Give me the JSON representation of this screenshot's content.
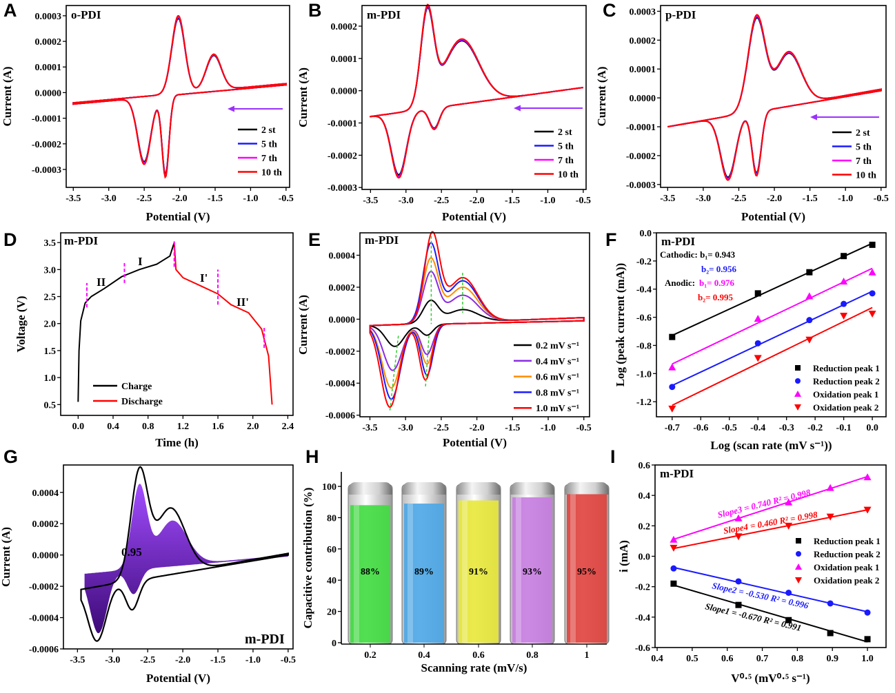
{
  "panel_labels": [
    "A",
    "B",
    "C",
    "D",
    "E",
    "F",
    "G",
    "H",
    "I"
  ],
  "colors": {
    "arrow": "#9b30ff",
    "dashed_marker": "#ff00ff",
    "phase_label": "#1a1aff",
    "title_red": "#ff0000",
    "fit_dashed": "#33cc33"
  },
  "chart_data": [
    {
      "type": "line",
      "title": "o-PDI",
      "xlabel": "Potential (V)",
      "ylabel": "Current (A)",
      "xticks": [
        -3.5,
        -3.0,
        -2.5,
        -2.0,
        -1.5,
        -1.0,
        -0.5
      ],
      "xtick_labels": [
        "-3.5",
        "-3.0",
        "-2.5",
        "-2.0",
        "-1.5",
        "-1.0",
        "-0.5"
      ],
      "yticks": [
        0.0003,
        0.0002,
        0.0001,
        0,
        -0.0001,
        -0.0002,
        -0.0003
      ],
      "ytick_labels": [
        "0.0003",
        "0.0002",
        "0.0001",
        "0.0000",
        "-0.0001",
        "-0.0002",
        "-0.0003"
      ],
      "series": [
        {
          "name": "2 st",
          "color": "#000000"
        },
        {
          "name": "5 th",
          "color": "#1a1aff"
        },
        {
          "name": "7 th",
          "color": "#ff00ff"
        },
        {
          "name": "10 th",
          "color": "#ff0000"
        }
      ],
      "cv": {
        "range": [
          -3.5,
          -0.5
        ],
        "anodic_baseline": [
          -4e-05,
          3.5e-05
        ],
        "cathodic_baseline": [
          -4.5e-05,
          3e-05
        ],
        "anodic_peaks": [
          {
            "potential": -2.02,
            "current": 0.0003,
            "width": 0.13
          },
          {
            "potential": -1.52,
            "current": 0.00015,
            "width": 0.15
          }
        ],
        "cathodic_peaks": [
          {
            "potential": -2.5,
            "current": -0.00028,
            "width": 0.13
          },
          {
            "potential": -2.2,
            "current": -0.00033,
            "width": 0.07
          }
        ]
      }
    },
    {
      "type": "line",
      "title": "m-PDI",
      "xlabel": "Potential (V)",
      "ylabel": "Current (A)",
      "xticks": [
        -3.5,
        -3.0,
        -2.5,
        -2.0,
        -1.5,
        -1.0,
        -0.5
      ],
      "xtick_labels": [
        "-3.5",
        "-3.0",
        "-2.5",
        "-2.0",
        "-1.5",
        "-1.0",
        "-0.5"
      ],
      "yticks": [
        0.0002,
        0.0001,
        0,
        -0.0001,
        -0.0002,
        -0.0003
      ],
      "ytick_labels": [
        "0.0002",
        "0.0001",
        "0.0000",
        "-0.0001",
        "-0.0002",
        "-0.0003"
      ],
      "series": [
        {
          "name": "2 st",
          "color": "#000000"
        },
        {
          "name": "5 th",
          "color": "#1a1aff"
        },
        {
          "name": "7 th",
          "color": "#ff00ff"
        },
        {
          "name": "10 th",
          "color": "#ff0000"
        }
      ],
      "cv": {
        "range": [
          -3.5,
          -0.5
        ],
        "anodic_baseline": [
          -8e-05,
          1e-05
        ],
        "cathodic_baseline": [
          -8e-05,
          1e-05
        ],
        "anodic_peaks": [
          {
            "potential": -2.7,
            "current": 0.000235,
            "width": 0.13
          },
          {
            "potential": -2.22,
            "current": 0.00016,
            "width": 0.35
          }
        ],
        "cathodic_peaks": [
          {
            "potential": -3.1,
            "current": -0.00027,
            "width": 0.15
          },
          {
            "potential": -2.6,
            "current": -0.00012,
            "width": 0.1
          }
        ]
      }
    },
    {
      "type": "line",
      "title": "p-PDI",
      "xlabel": "Potential (V)",
      "ylabel": "Current (A)",
      "xticks": [
        -3.5,
        -3.0,
        -2.5,
        -2.0,
        -1.5,
        -1.0,
        -0.5
      ],
      "xtick_labels": [
        "-3.5",
        "-3.0",
        "-2.5",
        "-2.0",
        "-1.5",
        "-1.0",
        "-0.5"
      ],
      "yticks": [
        0.0003,
        0.0002,
        0.0001,
        0,
        -0.0001,
        -0.0002,
        -0.0003
      ],
      "ytick_labels": [
        "0.0003",
        "0.0002",
        "0.0001",
        "0.0000",
        "-0.0001",
        "-0.0002",
        "-0.0003"
      ],
      "series": [
        {
          "name": "2 st",
          "color": "#000000"
        },
        {
          "name": "5 th",
          "color": "#1a1aff"
        },
        {
          "name": "7 th",
          "color": "#ff00ff"
        },
        {
          "name": "10 th",
          "color": "#ff0000"
        }
      ],
      "cv": {
        "range": [
          -3.5,
          -0.5
        ],
        "anodic_baseline": [
          -0.0001,
          3e-05
        ],
        "cathodic_baseline": [
          -0.0001,
          2.5e-05
        ],
        "anodic_peaks": [
          {
            "potential": -2.25,
            "current": 0.00028,
            "width": 0.17
          },
          {
            "potential": -1.8,
            "current": 0.00016,
            "width": 0.25
          }
        ],
        "cathodic_peaks": [
          {
            "potential": -2.65,
            "current": -0.000285,
            "width": 0.15
          },
          {
            "potential": -2.25,
            "current": -0.00027,
            "width": 0.09
          }
        ]
      }
    },
    {
      "type": "line",
      "title": "m-PDI",
      "xlabel": "Time (h)",
      "ylabel": "Voltage (V)",
      "xticks": [
        0,
        0.4,
        0.8,
        1.2,
        1.6,
        2.0,
        2.4
      ],
      "xtick_labels": [
        "0.0",
        "0.4",
        "0.8",
        "1.2",
        "1.6",
        "2.0",
        "2.4"
      ],
      "yticks": [
        3.5,
        3.0,
        2.5,
        2.0,
        1.5,
        1.0,
        0.5
      ],
      "ytick_labels": [
        "3.5",
        "3.0",
        "2.5",
        "2.0",
        "1.5",
        "1.0",
        "0.5"
      ],
      "series": [
        {
          "name": "Charge",
          "color": "#000000",
          "x": [
            0,
            0.01,
            0.03,
            0.08,
            0.15,
            0.3,
            0.5,
            0.7,
            0.9,
            1.05,
            1.1
          ],
          "y": [
            0.55,
            1.5,
            2.05,
            2.38,
            2.5,
            2.65,
            2.87,
            3.0,
            3.1,
            3.25,
            3.5
          ]
        },
        {
          "name": "Discharge",
          "color": "#ff0000",
          "x": [
            1.1,
            1.12,
            1.2,
            1.4,
            1.6,
            1.75,
            1.95,
            2.1,
            2.18,
            2.22
          ],
          "y": [
            3.5,
            3.0,
            2.85,
            2.7,
            2.55,
            2.35,
            2.2,
            1.9,
            1.4,
            0.5
          ]
        }
      ],
      "stage_boundaries": [
        {
          "time": 0.1,
          "v": [
            2.3,
            2.75
          ]
        },
        {
          "time": 0.53,
          "v": [
            2.75,
            3.15
          ]
        },
        {
          "time": 1.1,
          "v": [
            3.05,
            3.55
          ]
        },
        {
          "time": 1.6,
          "v": [
            2.35,
            3.0
          ]
        },
        {
          "time": 2.13,
          "v": [
            1.55,
            1.95
          ]
        }
      ],
      "stage_labels": [
        "II",
        "I",
        "I'",
        "II'"
      ]
    },
    {
      "type": "line",
      "title": "m-PDI",
      "xlabel": "Potential (V)",
      "ylabel": "Current (A)",
      "xticks": [
        -3.5,
        -3.0,
        -2.5,
        -2.0,
        -1.5,
        -1.0,
        -0.5
      ],
      "xtick_labels": [
        "-3.5",
        "-3.0",
        "-2.5",
        "-2.0",
        "-1.5",
        "-1.0",
        "-0.5"
      ],
      "yticks": [
        0.0004,
        0.0002,
        0,
        -0.0002,
        -0.0004,
        -0.0006
      ],
      "ytick_labels": [
        "0.0004",
        "0.0002",
        "0.0000",
        "-0.0002",
        "-0.0004",
        "-0.0006"
      ],
      "cv_range": [
        -3.5,
        -0.5
      ],
      "anodic_baseline": [
        -4e-05,
        1e-05
      ],
      "cathodic_baseline": [
        -4e-05,
        -1e-05
      ],
      "series": [
        {
          "name": "0.2 mV s⁻¹",
          "color": "#000000",
          "anodic_peaks": [
            {
              "potential": -2.65,
              "current": 0.00011,
              "width": 0.15
            },
            {
              "potential": -2.2,
              "current": 6e-05,
              "width": 0.3
            }
          ],
          "cathodic_peaks": [
            {
              "potential": -3.15,
              "current": -0.00017,
              "width": 0.18
            },
            {
              "potential": -2.7,
              "current": -0.0001,
              "width": 0.12
            }
          ]
        },
        {
          "name": "0.4 mV s⁻¹",
          "color": "#8a2be2",
          "anodic_peaks": [
            {
              "potential": -2.65,
              "current": 0.00028,
              "width": 0.15
            },
            {
              "potential": -2.2,
              "current": 0.00015,
              "width": 0.3
            }
          ],
          "cathodic_peaks": [
            {
              "potential": -3.18,
              "current": -0.00032,
              "width": 0.18
            },
            {
              "potential": -2.7,
              "current": -0.00022,
              "width": 0.12
            }
          ]
        },
        {
          "name": "0.6 mV s⁻¹",
          "color": "#ff8c00",
          "anodic_peaks": [
            {
              "potential": -2.65,
              "current": 0.00036,
              "width": 0.15
            },
            {
              "potential": -2.2,
              "current": 0.0002,
              "width": 0.3
            }
          ],
          "cathodic_peaks": [
            {
              "potential": -3.2,
              "current": -0.00043,
              "width": 0.18
            },
            {
              "potential": -2.7,
              "current": -0.00028,
              "width": 0.12
            }
          ]
        },
        {
          "name": "0.8 mV s⁻¹",
          "color": "#1a1aff",
          "anodic_peaks": [
            {
              "potential": -2.65,
              "current": 0.00045,
              "width": 0.15
            },
            {
              "potential": -2.2,
              "current": 0.00024,
              "width": 0.3
            }
          ],
          "cathodic_peaks": [
            {
              "potential": -3.2,
              "current": -0.0005,
              "width": 0.18
            },
            {
              "potential": -2.7,
              "current": -0.00035,
              "width": 0.12
            }
          ]
        },
        {
          "name": "1.0 mV s⁻¹",
          "color": "#ff0000",
          "anodic_peaks": [
            {
              "potential": -2.63,
              "current": 0.00051,
              "width": 0.15
            },
            {
              "potential": -2.2,
              "current": 0.00026,
              "width": 0.3
            }
          ],
          "cathodic_peaks": [
            {
              "potential": -3.22,
              "current": -0.00055,
              "width": 0.18
            },
            {
              "potential": -2.72,
              "current": -0.00038,
              "width": 0.12
            }
          ]
        }
      ]
    },
    {
      "type": "scatter",
      "title": "m-PDI",
      "xlabel": "Log (scan rate (mV s⁻¹))",
      "ylabel": "Log (peak current (mA))",
      "xticks": [
        -0.7,
        -0.6,
        -0.5,
        -0.4,
        -0.3,
        -0.2,
        -0.1,
        0.0
      ],
      "xtick_labels": [
        "-0.7",
        "-0.6",
        "-0.5",
        "-0.4",
        "-0.3",
        "-0.2",
        "-0.1",
        "0.0"
      ],
      "yticks": [
        0.0,
        -0.2,
        -0.4,
        -0.6,
        -0.8,
        -1.0,
        -1.2
      ],
      "ytick_labels": [
        "0.0",
        "-0.2",
        "-0.4",
        "-0.6",
        "-0.8",
        "-1.0",
        "-1.2"
      ],
      "x": [
        -0.7,
        -0.4,
        -0.22,
        -0.1,
        0.0
      ],
      "series": [
        {
          "name": "Reduction peak 1",
          "color": "#000000",
          "marker": "square",
          "values": [
            -0.74,
            -0.43,
            -0.28,
            -0.165,
            -0.085
          ]
        },
        {
          "name": "Reduction peak 2",
          "color": "#1a1aff",
          "marker": "circle",
          "values": [
            -1.095,
            -0.785,
            -0.62,
            -0.505,
            -0.43
          ]
        },
        {
          "name": "Oxidation peak 1",
          "color": "#ff00ff",
          "marker": "triangle-up",
          "values": [
            -0.955,
            -0.61,
            -0.45,
            -0.345,
            -0.28
          ]
        },
        {
          "name": "Oxidation peak 2",
          "color": "#ff0000",
          "marker": "triangle-down",
          "values": [
            -1.25,
            -0.89,
            -0.76,
            -0.59,
            -0.575
          ]
        }
      ],
      "annotations": {
        "cathodic_label": "Cathodic: b₁= 0.943",
        "cathodic_b2": "b₂= 0.956",
        "anodic_label": "Anodic: ",
        "anodic_b1": "b₁= 0.976",
        "anodic_b2": "b₂= 0.995"
      },
      "legend": "bottom-right"
    },
    {
      "type": "area",
      "title": "m-PDI",
      "xlabel": "Potential (V)",
      "ylabel": "Current (A)",
      "xticks": [
        -3.5,
        -3.0,
        -2.5,
        -2.0,
        -1.5,
        -1.0,
        -0.5
      ],
      "xtick_labels": [
        "-3.5",
        "-3.0",
        "-2.5",
        "-2.0",
        "-1.5",
        "-1.0",
        "-0.5"
      ],
      "yticks": [
        0.0004,
        0.0002,
        0,
        -0.0002,
        -0.0004,
        -0.0006
      ],
      "ytick_labels": [
        "0.0004",
        "0.0002",
        "0.0000",
        "-0.0002",
        "-0.0004",
        "-0.0006"
      ],
      "capacitive_fraction_label": "0.95",
      "outline": {
        "color": "#000000",
        "range": [
          -3.45,
          -0.5
        ],
        "anodic_baseline": [
          -0.00022,
          1e-05
        ],
        "cathodic_baseline": [
          -0.00022,
          0.0
        ],
        "anodic_peaks": [
          {
            "potential": -2.62,
            "current": 0.00051,
            "width": 0.17
          },
          {
            "potential": -2.18,
            "current": 0.0003,
            "width": 0.3
          }
        ],
        "cathodic_peaks": [
          {
            "potential": -3.22,
            "current": -0.00055,
            "width": 0.18
          },
          {
            "potential": -2.72,
            "current": -0.00035,
            "width": 0.13
          }
        ]
      },
      "capacitive": {
        "colors": [
          "#a24dff",
          "#3d0a78"
        ],
        "range": [
          -3.4,
          -0.5
        ],
        "anodic_baseline": [
          -0.00012,
          0.0
        ],
        "cathodic_baseline": [
          -0.00012,
          -1e-05
        ],
        "anodic_peaks": [
          {
            "potential": -2.62,
            "current": 0.00043,
            "width": 0.15
          },
          {
            "potential": -2.15,
            "current": 0.00022,
            "width": 0.3
          }
        ],
        "cathodic_peaks": [
          {
            "potential": -3.2,
            "current": -0.0005,
            "width": 0.17
          },
          {
            "potential": -2.7,
            "current": -0.00025,
            "width": 0.13
          }
        ]
      }
    },
    {
      "type": "bar",
      "xlabel": "Scanning rate (mV/s)",
      "ylabel": "Capacitive contribution (%)",
      "categories": [
        "0.2",
        "0.4",
        "0.6",
        "0.8",
        "1"
      ],
      "values": [
        88,
        89,
        91,
        93,
        95
      ],
      "value_labels": [
        "88%",
        "89%",
        "91%",
        "93%",
        "95%"
      ],
      "colors": [
        "#3fdc3f",
        "#4aa6e6",
        "#e8e83a",
        "#c77ce0",
        "#e0403c"
      ],
      "yticks": [
        0,
        20,
        40,
        60,
        80,
        100
      ],
      "ytick_labels": [
        "0",
        "20",
        "40",
        "60",
        "80",
        "100"
      ],
      "ylim": [
        0,
        100
      ]
    },
    {
      "type": "scatter",
      "title": "m-PDI",
      "xlabel": "V⁰·⁵ (mV⁰·⁵ s⁻¹)",
      "ylabel": "i (mA)",
      "xticks": [
        0.4,
        0.5,
        0.6,
        0.7,
        0.8,
        0.9,
        1.0
      ],
      "xtick_labels": [
        "0.4",
        "0.5",
        "0.6",
        "0.7",
        "0.8",
        "0.9",
        "1.0"
      ],
      "yticks": [
        0.6,
        0.4,
        0.2,
        0.0,
        -0.2,
        -0.4,
        -0.6
      ],
      "ytick_labels": [
        "0.6",
        "0.4",
        "0.2",
        "0.0",
        "-0.2",
        "-0.4",
        "-0.6"
      ],
      "x": [
        0.447,
        0.632,
        0.775,
        0.894,
        1.0
      ],
      "series": [
        {
          "name": "Reduction peak 1",
          "color": "#000000",
          "marker": "square",
          "values": [
            -0.18,
            -0.32,
            -0.42,
            -0.505,
            -0.545
          ]
        },
        {
          "name": "Reduction peak 2",
          "color": "#1a1aff",
          "marker": "circle",
          "values": [
            -0.08,
            -0.165,
            -0.24,
            -0.31,
            -0.37
          ]
        },
        {
          "name": "Oxidation peak 1",
          "color": "#ff00ff",
          "marker": "triangle-up",
          "values": [
            0.11,
            0.25,
            0.355,
            0.45,
            0.52
          ]
        },
        {
          "name": "Oxidation peak 2",
          "color": "#ff0000",
          "marker": "triangle-down",
          "values": [
            0.055,
            0.13,
            0.2,
            0.26,
            0.305
          ]
        }
      ],
      "annotations": [
        "Slope1 = -0.670   R² = 0.991",
        "Slope2 = -0.530   R² = 0.996",
        "Slope3 = 0.740   R² = 0.998",
        "Slope4 = 0.460   R² = 0.998"
      ],
      "legend": "right"
    }
  ]
}
